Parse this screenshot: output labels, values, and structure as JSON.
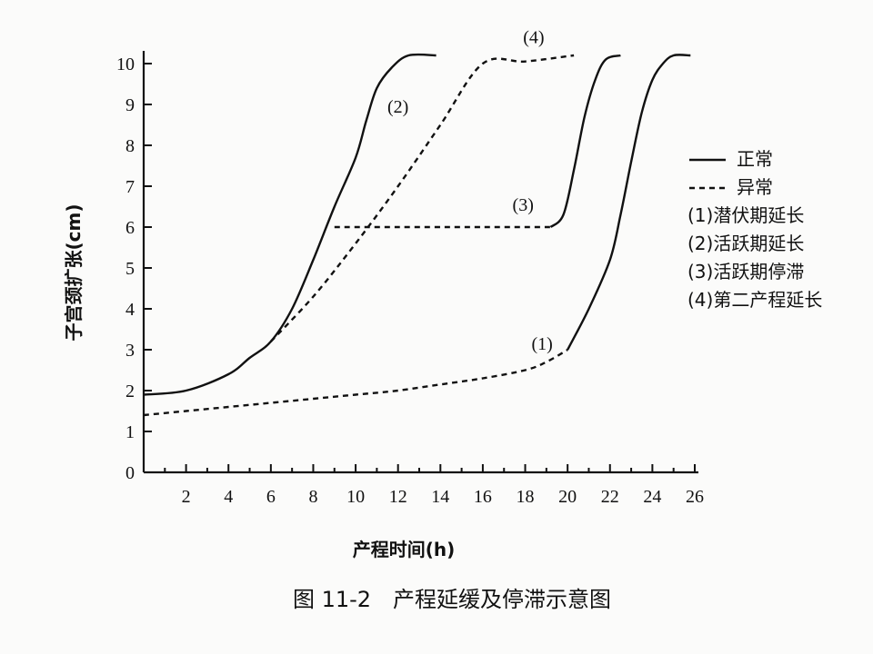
{
  "chart_data": {
    "type": "line",
    "xlabel": "产程时间(h)",
    "ylabel": "子宫颈扩张(cm)",
    "xlim": [
      0,
      26
    ],
    "ylim": [
      0,
      10
    ],
    "xticks": [
      2,
      4,
      6,
      8,
      10,
      12,
      14,
      16,
      18,
      20,
      22,
      24,
      26
    ],
    "yticks": [
      0,
      1,
      2,
      3,
      4,
      5,
      6,
      7,
      8,
      9,
      10
    ],
    "grid": false,
    "legend_position": "right",
    "legend": [
      {
        "label": "正常",
        "style": "solid"
      },
      {
        "label": "异常",
        "style": "dashed"
      },
      {
        "label": "(1)潜伏期延长"
      },
      {
        "label": "(2)活跃期延长"
      },
      {
        "label": "(3)活跃期停滞"
      },
      {
        "label": "(4)第二产程延长"
      }
    ],
    "annotations": [
      "(1)",
      "(2)",
      "(3)",
      "(4)"
    ],
    "series": [
      {
        "name": "正常",
        "style": "solid",
        "points": [
          [
            0,
            1.9
          ],
          [
            2,
            2.0
          ],
          [
            4,
            2.4
          ],
          [
            5,
            2.8
          ],
          [
            6,
            3.2
          ],
          [
            7,
            4.0
          ],
          [
            8,
            5.2
          ],
          [
            9,
            6.5
          ],
          [
            10,
            7.7
          ],
          [
            10.5,
            8.6
          ],
          [
            11,
            9.4
          ],
          [
            11.7,
            9.9
          ],
          [
            12.5,
            10.2
          ],
          [
            13.8,
            10.2
          ]
        ]
      },
      {
        "name": "(1)",
        "style": "dashed",
        "points": [
          [
            0,
            1.4
          ],
          [
            2,
            1.5
          ],
          [
            4,
            1.6
          ],
          [
            6,
            1.7
          ],
          [
            8,
            1.8
          ],
          [
            10,
            1.9
          ],
          [
            12,
            2.0
          ],
          [
            14,
            2.15
          ],
          [
            16,
            2.3
          ],
          [
            18,
            2.5
          ],
          [
            19,
            2.7
          ],
          [
            20,
            3.0
          ]
        ]
      },
      {
        "name": "(1)",
        "style": "solid",
        "points": [
          [
            20,
            3.0
          ],
          [
            21,
            4.0
          ],
          [
            22,
            5.2
          ],
          [
            22.5,
            6.3
          ],
          [
            23,
            7.6
          ],
          [
            23.5,
            8.8
          ],
          [
            24,
            9.6
          ],
          [
            24.5,
            10.0
          ],
          [
            25,
            10.2
          ],
          [
            25.8,
            10.2
          ]
        ]
      },
      {
        "name": "(2)",
        "style": "dashed",
        "points": [
          [
            6,
            3.2
          ],
          [
            8,
            4.3
          ],
          [
            10,
            5.6
          ],
          [
            12,
            7.0
          ],
          [
            14,
            8.5
          ],
          [
            16,
            10.0
          ],
          [
            18,
            10.05
          ],
          [
            20.3,
            10.2
          ]
        ]
      },
      {
        "name": "(3)",
        "style": "dashed",
        "points": [
          [
            9,
            6.0
          ],
          [
            12,
            6.0
          ],
          [
            15,
            6.0
          ],
          [
            17,
            6.0
          ],
          [
            19.2,
            6.0
          ]
        ]
      },
      {
        "name": "(3)",
        "style": "solid",
        "points": [
          [
            19.2,
            6.0
          ],
          [
            19.8,
            6.3
          ],
          [
            20.3,
            7.4
          ],
          [
            20.8,
            8.7
          ],
          [
            21.3,
            9.6
          ],
          [
            21.8,
            10.1
          ],
          [
            22.5,
            10.2
          ]
        ]
      }
    ]
  },
  "caption": "图 11-2　产程延缓及停滞示意图"
}
